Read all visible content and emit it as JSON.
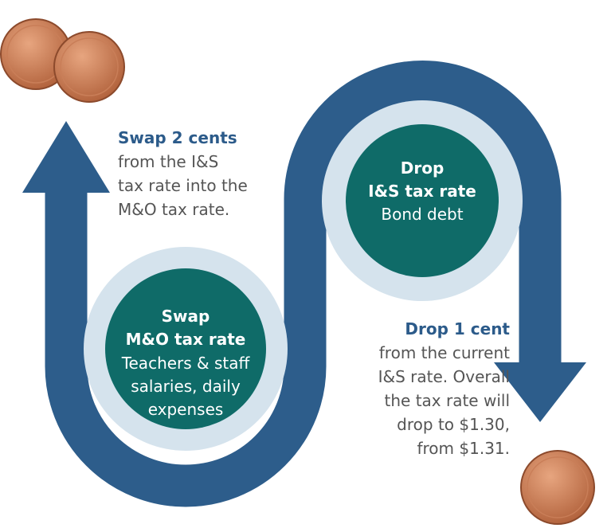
{
  "left_note": {
    "heading": "Swap 2 cents",
    "lines": [
      "from the I&S",
      "tax rate into the",
      "M&O tax rate."
    ]
  },
  "top_circle": {
    "title": [
      "Drop",
      "I&S tax rate"
    ],
    "lines": [
      "Bond debt"
    ]
  },
  "bottom_circle": {
    "title": [
      "Swap",
      "M&O tax rate"
    ],
    "lines": [
      "Teachers & staff",
      "salaries, daily",
      "expenses"
    ]
  },
  "right_note": {
    "heading": "Drop 1 cent",
    "lines": [
      "from the current",
      "I&S rate. Overall",
      "the tax rate will",
      "drop to $1.30,",
      "from $1.31."
    ]
  }
}
